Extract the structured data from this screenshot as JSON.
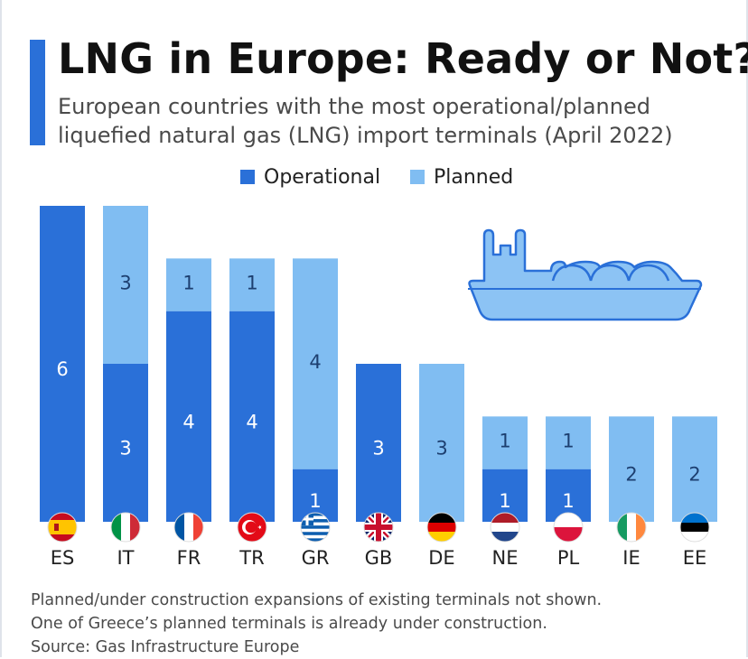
{
  "header": {
    "title": "LNG in Europe: Ready or Not?",
    "subtitle_line1": "European countries with the most operational/planned",
    "subtitle_line2": "liquefied natural gas (LNG) import terminals (April 2022)"
  },
  "legend": {
    "operational": "Operational",
    "planned": "Planned"
  },
  "colors": {
    "operational": "#2a70d8",
    "planned": "#80bdf2",
    "ship_fill": "#8cc3f4",
    "ship_stroke": "#2a70d8",
    "accent": "#2a70d8"
  },
  "chart_data": {
    "type": "bar",
    "stacked": true,
    "categories": [
      "ES",
      "IT",
      "FR",
      "TR",
      "GR",
      "GB",
      "DE",
      "NE",
      "PL",
      "IE",
      "EE"
    ],
    "series": [
      {
        "name": "Operational",
        "values": [
          6,
          3,
          4,
          4,
          1,
          3,
          0,
          1,
          1,
          0,
          0
        ]
      },
      {
        "name": "Planned",
        "values": [
          0,
          3,
          1,
          1,
          4,
          0,
          3,
          1,
          1,
          2,
          2
        ]
      }
    ],
    "ylim": [
      0,
      6
    ],
    "grid": false,
    "legend_position": "top-center",
    "data_labels": true,
    "flags": [
      "spain-flag-icon",
      "italy-flag-icon",
      "france-flag-icon",
      "turkey-flag-icon",
      "greece-flag-icon",
      "uk-flag-icon",
      "germany-flag-icon",
      "netherlands-flag-icon",
      "poland-flag-icon",
      "ireland-flag-icon",
      "estonia-flag-icon"
    ],
    "illustration": "lng-tanker-ship-icon"
  },
  "footnotes": {
    "line1": "Planned/under construction expansions of existing terminals not shown.",
    "line2": "One of Greece’s planned terminals is already under construction.",
    "source": "Source: Gas Infrastructure Europe"
  }
}
